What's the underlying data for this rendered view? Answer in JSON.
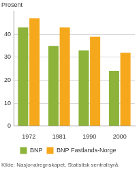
{
  "chart_data": {
    "type": "bar",
    "ylabel": "Prosent",
    "source": "Kilde: Nasjonalregnskapet, Statistisk sentralbyrå.",
    "categories": [
      "1972",
      "1981",
      "1990",
      "2000"
    ],
    "series": [
      {
        "name": "BNP",
        "color": "#8db33a",
        "values": [
          43,
          35,
          33,
          24
        ]
      },
      {
        "name": "BNP Fastlands-Norge",
        "color": "#f6a81c",
        "values": [
          47,
          43,
          39,
          32
        ]
      }
    ],
    "ylim": [
      0,
      50
    ],
    "yticks": [
      0,
      10,
      20,
      30,
      40
    ],
    "grid": true,
    "legend": "bottom"
  }
}
